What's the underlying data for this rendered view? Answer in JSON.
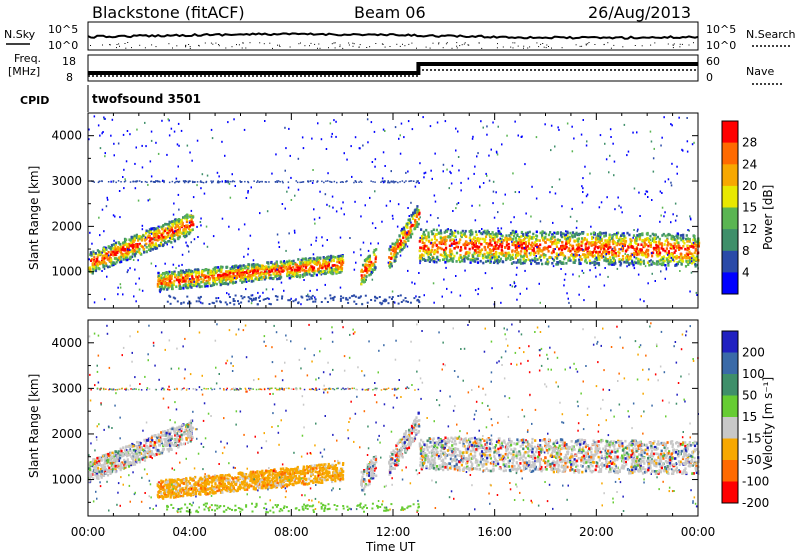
{
  "header": {
    "station": "Blackstone (fitACF)",
    "beam": "Beam 06",
    "date": "26/Aug/2013"
  },
  "status_panels": {
    "nsky_label": "N.Sky",
    "nsky_ticks": [
      "10^5",
      "10^0"
    ],
    "nsearch_label": "N.Search",
    "nsearch_ticks": [
      "10^5",
      "10^0"
    ],
    "freq_label": "Freq.",
    "freq_unit": "[MHz]",
    "freq_ticks": [
      "18",
      "8"
    ],
    "nave_label": "Nave",
    "nave_ticks": [
      "60",
      "0"
    ],
    "cpid_label": "CPID",
    "cpid_value": "twofsound 3501"
  },
  "chart_data": [
    {
      "type": "heatmap",
      "name": "power",
      "ylabel": "Slant Range [km]",
      "xlabel": "Time UT",
      "y_ticks": [
        "1000",
        "2000",
        "3000",
        "4000"
      ],
      "ylim": [
        200,
        4500
      ],
      "xlim": [
        0,
        24
      ],
      "colorbar": {
        "label": "Power [dB]",
        "ticks": [
          "4",
          "8",
          "12",
          "15",
          "20",
          "24",
          "28"
        ],
        "colors": [
          "#0000ff",
          "#2a4aa8",
          "#3f8f6a",
          "#5ab552",
          "#e8e800",
          "#f7a800",
          "#ff6a00",
          "#ff0000"
        ]
      },
      "features": [
        {
          "t0": 0.0,
          "t1": 4.1,
          "r0": 1200,
          "r1": 2100
        },
        {
          "t0": 2.7,
          "t1": 10.0,
          "r0": 800,
          "r1": 1200
        },
        {
          "t0": 10.7,
          "t1": 11.3,
          "r0": 950,
          "r1": 1350
        },
        {
          "t0": 11.8,
          "t1": 13.0,
          "r0": 1300,
          "r1": 2300
        },
        {
          "t0": 13.0,
          "t1": 24.0,
          "r0": 1600,
          "r1": 1500
        }
      ],
      "scatter_line_km": 3000
    },
    {
      "type": "heatmap",
      "name": "velocity",
      "ylabel": "Slant Range [km]",
      "xlabel": "Time UT",
      "y_ticks": [
        "1000",
        "2000",
        "3000",
        "4000"
      ],
      "ylim": [
        200,
        4500
      ],
      "xlim": [
        0,
        24
      ],
      "colorbar": {
        "label": "Velocity [m s⁻¹]",
        "ticks": [
          "200",
          "100",
          "50",
          "15",
          "-15",
          "-50",
          "-100",
          "-200"
        ],
        "colors": [
          "#2020c0",
          "#3a6aa8",
          "#3f8f6a",
          "#66cc33",
          "#c8c8c8",
          "#f7a800",
          "#ff6a00",
          "#ff0000"
        ]
      },
      "x_ticks": [
        "00:00",
        "04:00",
        "08:00",
        "12:00",
        "16:00",
        "20:00",
        "00:00"
      ]
    }
  ]
}
